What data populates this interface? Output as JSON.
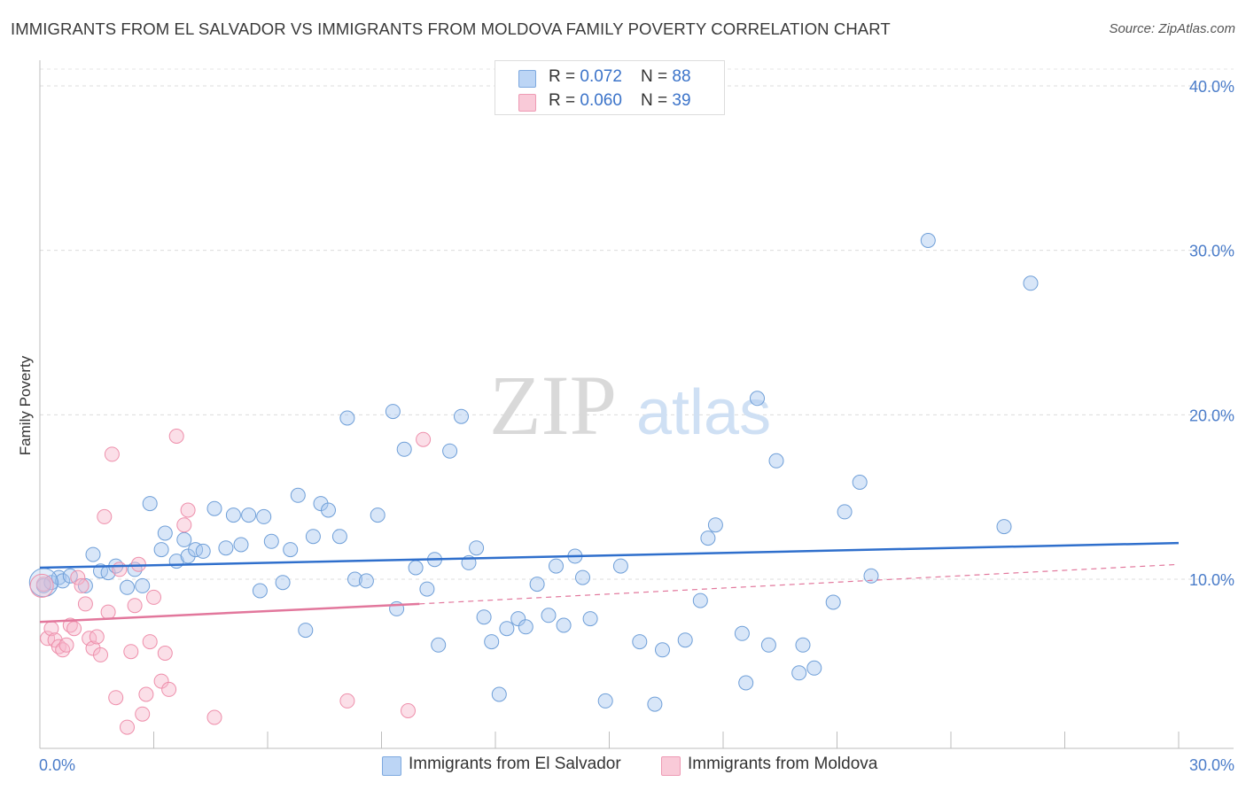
{
  "title": "IMMIGRANTS FROM EL SALVADOR VS IMMIGRANTS FROM MOLDOVA FAMILY POVERTY CORRELATION CHART",
  "source": "Source: ZipAtlas.com",
  "watermark": {
    "zip": "ZIP",
    "atlas": "atlas"
  },
  "legend": {
    "rows": [
      {
        "r_label": "R = ",
        "r_value": "0.072",
        "n_label": "N = ",
        "n_value": "88",
        "color": "#a9c8f0"
      },
      {
        "r_label": "R = ",
        "r_value": "0.060",
        "n_label": "N = ",
        "n_value": "39",
        "color": "#f6b8cb"
      }
    ]
  },
  "chart_data": {
    "type": "scatter",
    "title": "IMMIGRANTS FROM EL SALVADOR VS IMMIGRANTS FROM MOLDOVA FAMILY POVERTY CORRELATION CHART",
    "xlabel": "",
    "ylabel": "Family Poverty",
    "xlim": [
      0,
      30
    ],
    "ylim": [
      0,
      42
    ],
    "x_tick_labels": [
      "0.0%",
      "30.0%"
    ],
    "y_ticks": [
      10,
      20,
      30,
      40
    ],
    "y_tick_labels": [
      "10.0%",
      "20.0%",
      "30.0%",
      "40.0%"
    ],
    "grid": true,
    "series": [
      {
        "name": "Immigrants from El Salvador",
        "color": "#a9c8f0",
        "stroke": "#6f9fd8",
        "trend": {
          "x": [
            0,
            30
          ],
          "y": [
            10.7,
            12.2
          ],
          "color": "#2f6fcc",
          "style": "solid"
        },
        "points": [
          [
            0.1,
            9.6
          ],
          [
            0.3,
            9.8
          ],
          [
            0.5,
            10.1
          ],
          [
            0.6,
            9.9
          ],
          [
            0.8,
            10.2
          ],
          [
            1.2,
            9.6
          ],
          [
            1.4,
            11.5
          ],
          [
            1.6,
            10.5
          ],
          [
            1.8,
            10.4
          ],
          [
            2.0,
            10.8
          ],
          [
            2.3,
            9.5
          ],
          [
            2.5,
            10.6
          ],
          [
            2.7,
            9.6
          ],
          [
            2.9,
            14.6
          ],
          [
            3.2,
            11.8
          ],
          [
            3.3,
            12.8
          ],
          [
            3.6,
            11.1
          ],
          [
            3.8,
            12.4
          ],
          [
            3.9,
            11.4
          ],
          [
            4.1,
            11.8
          ],
          [
            4.3,
            11.7
          ],
          [
            4.6,
            14.3
          ],
          [
            4.9,
            11.9
          ],
          [
            5.1,
            13.9
          ],
          [
            5.3,
            12.1
          ],
          [
            5.5,
            13.9
          ],
          [
            5.8,
            9.3
          ],
          [
            5.9,
            13.8
          ],
          [
            6.1,
            12.3
          ],
          [
            6.4,
            9.8
          ],
          [
            6.6,
            11.8
          ],
          [
            6.8,
            15.1
          ],
          [
            7.0,
            6.9
          ],
          [
            7.2,
            12.6
          ],
          [
            7.4,
            14.6
          ],
          [
            7.6,
            14.2
          ],
          [
            7.9,
            12.6
          ],
          [
            8.1,
            19.8
          ],
          [
            8.3,
            10.0
          ],
          [
            8.6,
            9.9
          ],
          [
            8.9,
            13.9
          ],
          [
            9.3,
            20.2
          ],
          [
            9.4,
            8.2
          ],
          [
            9.6,
            17.9
          ],
          [
            9.9,
            10.7
          ],
          [
            10.2,
            9.4
          ],
          [
            10.4,
            11.2
          ],
          [
            10.5,
            6.0
          ],
          [
            10.8,
            17.8
          ],
          [
            11.1,
            19.9
          ],
          [
            11.3,
            11.0
          ],
          [
            11.5,
            11.9
          ],
          [
            11.7,
            7.7
          ],
          [
            11.9,
            6.2
          ],
          [
            12.1,
            3.0
          ],
          [
            12.3,
            7.0
          ],
          [
            12.6,
            7.6
          ],
          [
            12.8,
            7.1
          ],
          [
            13.1,
            9.7
          ],
          [
            13.4,
            7.8
          ],
          [
            13.6,
            10.8
          ],
          [
            13.8,
            7.2
          ],
          [
            14.1,
            11.4
          ],
          [
            14.3,
            10.1
          ],
          [
            14.5,
            7.6
          ],
          [
            14.9,
            2.6
          ],
          [
            15.3,
            10.8
          ],
          [
            15.8,
            6.2
          ],
          [
            16.2,
            2.4
          ],
          [
            16.4,
            5.7
          ],
          [
            17.0,
            6.3
          ],
          [
            17.4,
            8.7
          ],
          [
            17.6,
            12.5
          ],
          [
            17.8,
            13.3
          ],
          [
            18.5,
            6.7
          ],
          [
            18.6,
            3.7
          ],
          [
            18.9,
            21.0
          ],
          [
            19.2,
            6.0
          ],
          [
            19.4,
            17.2
          ],
          [
            20.0,
            4.3
          ],
          [
            20.1,
            6.0
          ],
          [
            20.4,
            4.6
          ],
          [
            20.9,
            8.6
          ],
          [
            21.2,
            14.1
          ],
          [
            21.6,
            15.9
          ],
          [
            21.9,
            10.2
          ],
          [
            23.4,
            30.6
          ],
          [
            25.4,
            13.2
          ],
          [
            26.1,
            28.0
          ]
        ]
      },
      {
        "name": "Immigrants from Moldova",
        "color": "#f6b8cb",
        "stroke": "#ee8fab",
        "trend": {
          "x": [
            0,
            10
          ],
          "y": [
            7.4,
            8.5
          ],
          "color": "#e2779c",
          "style": "solid",
          "extension": {
            "x": [
              10,
              30
            ],
            "y": [
              8.5,
              10.9
            ],
            "style": "dashed"
          }
        },
        "points": [
          [
            0.1,
            9.7
          ],
          [
            0.2,
            6.4
          ],
          [
            0.3,
            7.0
          ],
          [
            0.4,
            6.3
          ],
          [
            0.5,
            5.9
          ],
          [
            0.6,
            5.7
          ],
          [
            0.7,
            6.0
          ],
          [
            0.8,
            7.2
          ],
          [
            0.9,
            7.0
          ],
          [
            1.0,
            10.1
          ],
          [
            1.1,
            9.6
          ],
          [
            1.2,
            8.5
          ],
          [
            1.3,
            6.4
          ],
          [
            1.4,
            5.8
          ],
          [
            1.5,
            6.5
          ],
          [
            1.6,
            5.4
          ],
          [
            1.7,
            13.8
          ],
          [
            1.8,
            8.0
          ],
          [
            1.9,
            17.6
          ],
          [
            2.0,
            2.8
          ],
          [
            2.1,
            10.6
          ],
          [
            2.3,
            1.0
          ],
          [
            2.4,
            5.6
          ],
          [
            2.5,
            8.4
          ],
          [
            2.6,
            10.9
          ],
          [
            2.7,
            1.8
          ],
          [
            2.8,
            3.0
          ],
          [
            2.9,
            6.2
          ],
          [
            3.0,
            8.9
          ],
          [
            3.2,
            3.8
          ],
          [
            3.3,
            5.5
          ],
          [
            3.4,
            3.3
          ],
          [
            3.6,
            18.7
          ],
          [
            3.8,
            13.3
          ],
          [
            3.9,
            14.2
          ],
          [
            4.6,
            1.6
          ],
          [
            8.1,
            2.6
          ],
          [
            9.7,
            2.0
          ],
          [
            10.1,
            18.5
          ]
        ]
      }
    ]
  },
  "bottom_legend": [
    {
      "label": "Immigrants from El Salvador",
      "color": "#a9c8f0"
    },
    {
      "label": "Immigrants from Moldova",
      "color": "#f6b8cb"
    }
  ]
}
